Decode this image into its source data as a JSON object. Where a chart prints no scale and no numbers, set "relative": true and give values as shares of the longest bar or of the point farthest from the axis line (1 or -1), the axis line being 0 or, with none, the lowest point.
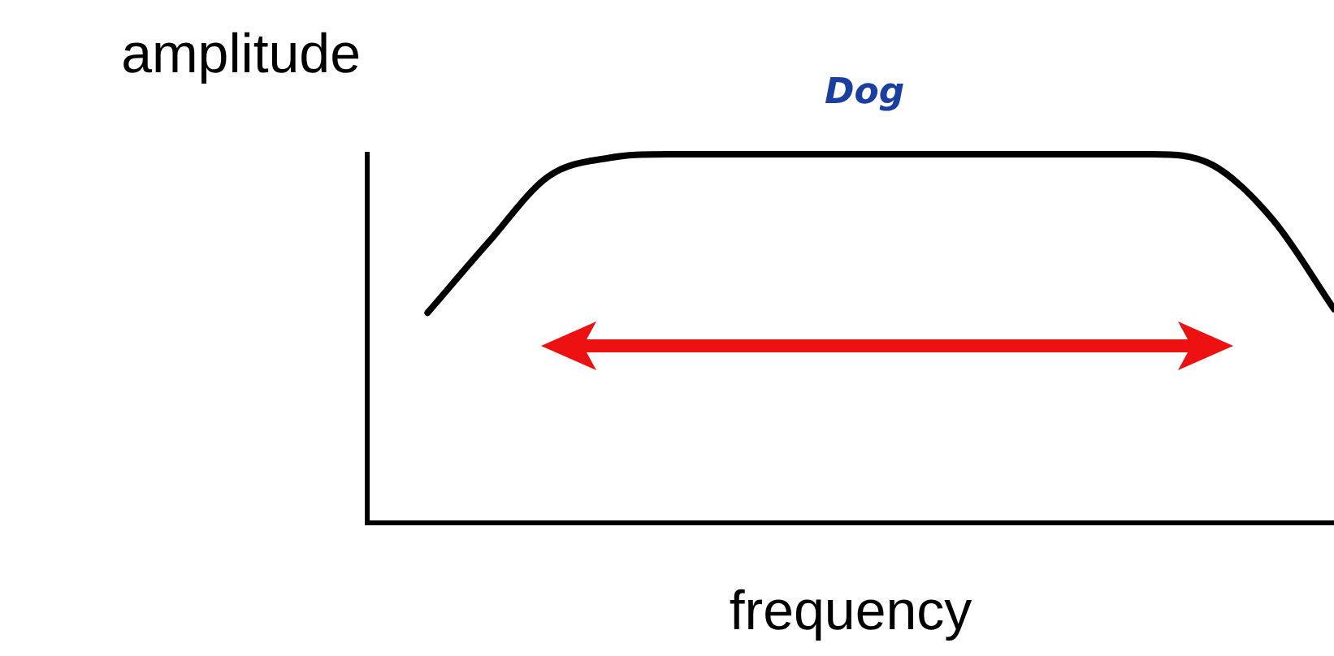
{
  "chart_data": {
    "type": "line",
    "title": "Dog",
    "xlabel": "frequency",
    "ylabel": "amplitude",
    "relative": true,
    "grid": false,
    "legend": false,
    "marker": "none",
    "line_style": "solid",
    "categories": [
      null,
      null,
      null,
      null,
      null,
      null,
      null,
      null,
      null,
      null,
      null,
      null,
      null,
      null,
      null,
      null,
      null
    ],
    "series": [
      {
        "color": "#000000",
        "values": [
          null,
          0.57,
          0.76,
          0.94,
          0.99,
          1,
          1,
          1,
          1,
          1,
          1,
          1,
          1,
          1,
          0.97,
          0.82,
          0.58
        ]
      }
    ]
  }
}
